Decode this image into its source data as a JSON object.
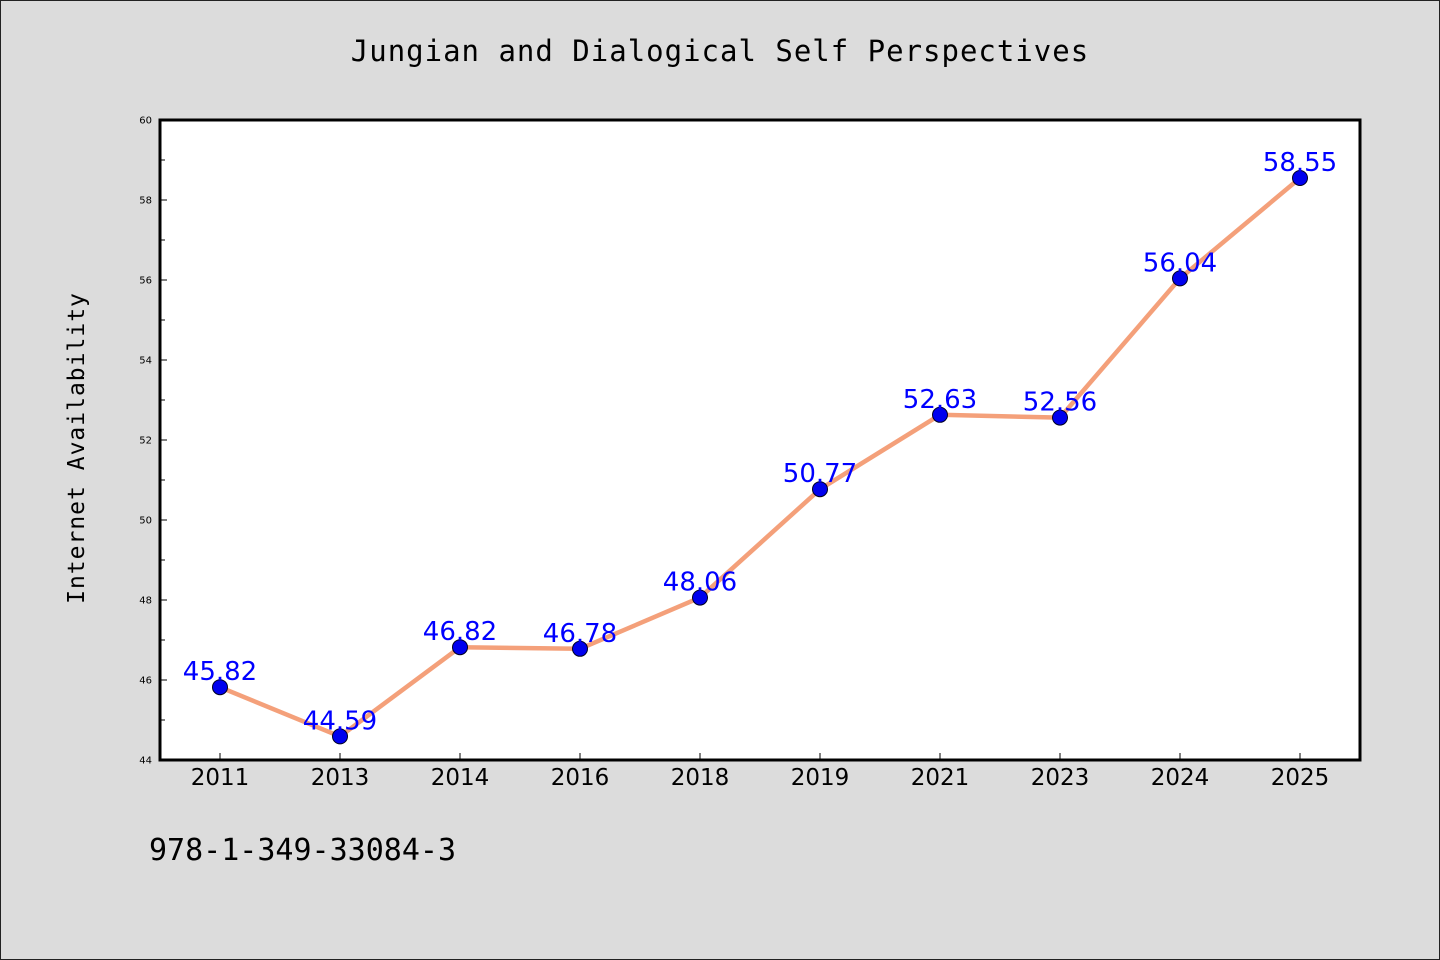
{
  "title": "Jungian and Dialogical Self Perspectives",
  "ylabel": "Internet Availability",
  "footer": "978-1-349-33084-3",
  "colors": {
    "background": "#dcdcdc",
    "line": "#f4a07a",
    "marker": "#0000ee",
    "label": "#0000ff"
  },
  "chart_data": {
    "type": "line",
    "title": "Jungian and Dialogical Self Perspectives",
    "xlabel": "",
    "ylabel": "Internet Availability",
    "categories": [
      "2011",
      "2013",
      "2014",
      "2016",
      "2018",
      "2019",
      "2021",
      "2023",
      "2024",
      "2025"
    ],
    "series": [
      {
        "values": [
          45.82,
          44.59,
          46.82,
          46.78,
          48.06,
          50.77,
          52.63,
          52.56,
          56.04,
          58.55
        ],
        "labels": [
          "45.82",
          "44.59",
          "46.82",
          "46.78",
          "48.06",
          "50.77",
          "52.63",
          "52.56",
          "56.04",
          "58.55"
        ]
      }
    ],
    "ylim": [
      44,
      60
    ],
    "yticks": [
      44,
      46,
      48,
      50,
      52,
      54,
      56,
      58,
      60
    ],
    "grid": false,
    "legend": "none",
    "markers": true,
    "data_labels": true
  }
}
